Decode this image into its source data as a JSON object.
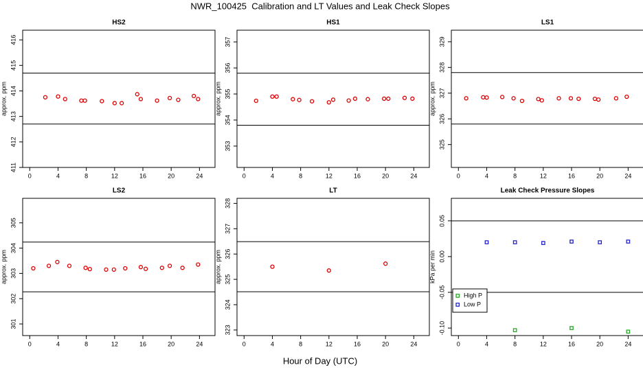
{
  "title": "NWR_100425  Calibration and LT Values and Leak Check Slopes",
  "x_label": "Hour of Day (UTC)",
  "chart_data": [
    {
      "type": "scatter",
      "title": "HS2",
      "y_label": "approx. ppm",
      "color": "#dd0000",
      "x": [
        2.2,
        4,
        5,
        7.3,
        7.8,
        10.2,
        12,
        13,
        15.2,
        15.7,
        18,
        19.8,
        21,
        23.2,
        23.8
      ],
      "values": [
        413.75,
        413.78,
        413.68,
        413.62,
        413.62,
        413.6,
        413.52,
        413.52,
        413.87,
        413.68,
        413.62,
        413.72,
        413.65,
        413.8,
        413.68
      ],
      "xlim": [
        -1,
        26.2
      ],
      "xticks": [
        0,
        4,
        8,
        12,
        16,
        20,
        24
      ],
      "ylim": [
        411,
        416.38
      ],
      "yticks": [
        411,
        412,
        413,
        414,
        415,
        416
      ],
      "hlines": [
        414.7,
        412.7
      ]
    },
    {
      "type": "scatter",
      "title": "HS1",
      "y_label": "approx. ppm",
      "color": "#dd0000",
      "x": [
        1.7,
        4,
        4.6,
        6.9,
        7.8,
        9.6,
        12,
        12.6,
        14.8,
        15.7,
        17.5,
        19.8,
        20.4,
        22.7,
        23.8
      ],
      "values": [
        354.74,
        354.9,
        354.9,
        354.8,
        354.77,
        354.72,
        354.68,
        354.78,
        354.75,
        354.82,
        354.8,
        354.82,
        354.82,
        354.85,
        354.82
      ],
      "xlim": [
        -1,
        26.2
      ],
      "xticks": [
        0,
        4,
        8,
        12,
        16,
        20,
        24
      ],
      "ylim": [
        352.18,
        357.45
      ],
      "yticks": [
        353,
        354,
        355,
        356,
        357
      ],
      "hlines": [
        355.8,
        353.8
      ]
    },
    {
      "type": "scatter",
      "title": "LS1",
      "y_label": "approx. ppm",
      "color": "#dd0000",
      "x": [
        1.1,
        3.5,
        4,
        6.2,
        7.8,
        9,
        11.3,
        11.8,
        14.2,
        15.9,
        17,
        19.3,
        19.8,
        22.3,
        23.8
      ],
      "values": [
        326.8,
        326.84,
        326.83,
        326.85,
        326.8,
        326.7,
        326.77,
        326.72,
        326.8,
        326.8,
        326.78,
        326.78,
        326.75,
        326.8,
        326.86
      ],
      "xlim": [
        -1,
        26.2
      ],
      "xticks": [
        0,
        4,
        8,
        12,
        16,
        20,
        24
      ],
      "ylim": [
        324.11,
        329.45
      ],
      "yticks": [
        325,
        326,
        327,
        328,
        329
      ],
      "hlines": [
        327.8,
        325.8
      ]
    },
    {
      "type": "scatter",
      "title": "LS2",
      "y_label": "approx. ppm",
      "color": "#dd0000",
      "x": [
        0.5,
        2.7,
        3.9,
        5.6,
        7.9,
        8.5,
        10.8,
        11.9,
        13.5,
        15.7,
        16.4,
        18.7,
        19.8,
        21.6,
        23.8
      ],
      "values": [
        303.2,
        303.3,
        303.45,
        303.3,
        303.22,
        303.17,
        303.15,
        303.15,
        303.2,
        303.25,
        303.18,
        303.22,
        303.3,
        303.22,
        303.35
      ],
      "xlim": [
        -1,
        26.2
      ],
      "xticks": [
        0,
        4,
        8,
        12,
        16,
        20,
        24
      ],
      "ylim": [
        300.54,
        305.97
      ],
      "yticks": [
        301,
        302,
        303,
        304,
        305
      ],
      "hlines": [
        304.24,
        302.27
      ]
    },
    {
      "type": "scatter",
      "title": "LT",
      "y_label": "approx. ppm",
      "color": "#dd0000",
      "x": [
        4,
        12,
        20
      ],
      "values": [
        325.5,
        325.35,
        325.62
      ],
      "xlim": [
        -1,
        26.2
      ],
      "xticks": [
        0,
        4,
        8,
        12,
        16,
        20,
        24
      ],
      "ylim": [
        322.78,
        328.2
      ],
      "yticks": [
        323,
        324,
        325,
        326,
        327,
        328
      ],
      "hlines": [
        326.49,
        324.51
      ]
    },
    {
      "type": "scatter",
      "title": "Leak Check Pressure Slopes",
      "y_label": "kPa per min",
      "legend": "lower left",
      "series": [
        {
          "name": "High P",
          "color": "#22aa22",
          "x": [
            8,
            16,
            24
          ],
          "values": [
            -0.103,
            -0.1,
            -0.105
          ]
        },
        {
          "name": "Low P",
          "color": "#2222cc",
          "x": [
            4,
            8,
            12,
            16,
            20,
            24
          ],
          "values": [
            0.02,
            0.02,
            0.019,
            0.021,
            0.02,
            0.021
          ]
        }
      ],
      "xlim": [
        -1,
        26.2
      ],
      "xticks": [
        0,
        4,
        8,
        12,
        16,
        20,
        24
      ],
      "ylim": [
        -0.1105,
        0.0815
      ],
      "yticks": [
        {
          "value": -0.1,
          "label": "-0.10"
        },
        {
          "value": -0.05,
          "label": "-0.05"
        },
        {
          "value": 0,
          "label": "0.00"
        },
        {
          "value": 0.05,
          "label": "0.05"
        }
      ],
      "hlines": [
        0.05,
        -0.05
      ]
    }
  ]
}
